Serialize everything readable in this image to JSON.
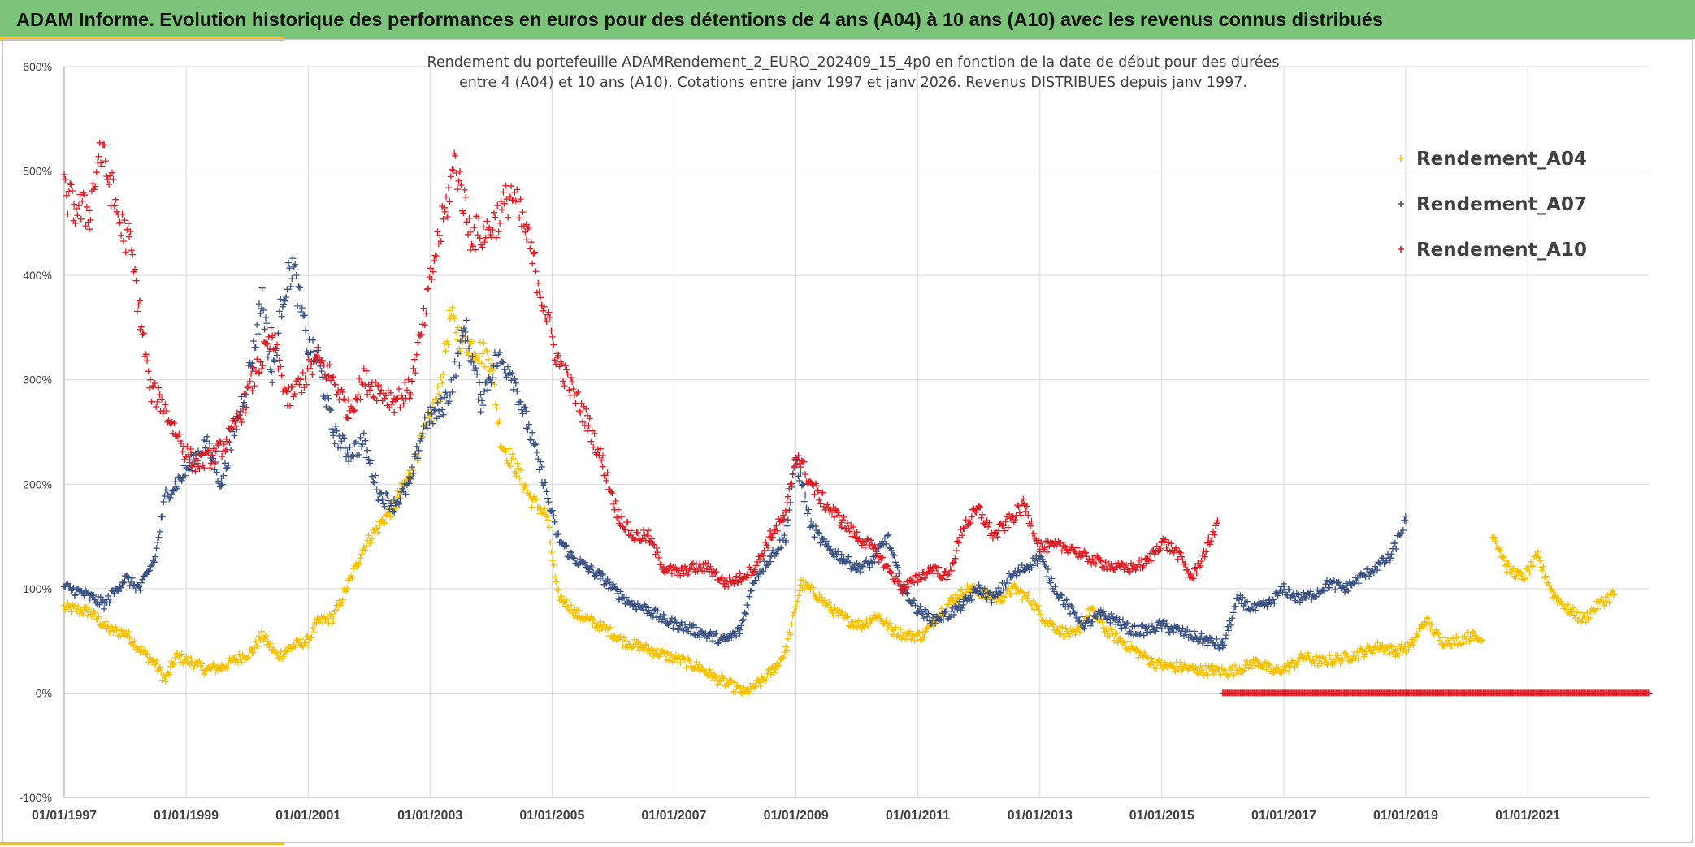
{
  "page": {
    "title": "ADAM Informe. Evolution historique des performances en euros pour des détentions de 4 ans (A04) à 10 ans (A10) avec les revenus connus distribués"
  },
  "chart_data": {
    "type": "scatter",
    "title_lines": [
      "Rendement du portefeuille ADAMRendement_2_EURO_202409_15_4p0  en fonction de la date de début pour des durées",
      "entre 4 (A04) et 10 ans (A10). Cotations entre janv 1997 et janv 2026. Revenus DISTRIBUES depuis janv 1997."
    ],
    "x_axis": {
      "type": "date",
      "min": "1997-01-01",
      "max": "2022-12-31",
      "ticks": [
        "01/01/1997",
        "01/01/1999",
        "01/01/2001",
        "01/01/2003",
        "01/01/2005",
        "01/01/2007",
        "01/01/2009",
        "01/01/2011",
        "01/01/2013",
        "01/01/2015",
        "01/01/2017",
        "01/01/2019",
        "01/01/2021"
      ]
    },
    "y_axis": {
      "min": -100,
      "max": 600,
      "step": 100,
      "unit": "%",
      "ticks": [
        "-100%",
        "0%",
        "100%",
        "200%",
        "300%",
        "400%",
        "500%",
        "600%"
      ]
    },
    "grid": true,
    "marker": "+",
    "legend": {
      "position": "right",
      "entries": [
        "Rendement_A04",
        "Rendement_A07",
        "Rendement_A10"
      ]
    },
    "series": [
      {
        "name": "Rendement_A04",
        "color": "#f5c000",
        "segments": [
          {
            "x": [
              "1997-01-01",
              "1997-06-01",
              "1997-10-01",
              "1998-01-01",
              "1998-04-01",
              "1998-07-01",
              "1998-09-01",
              "1998-11-01",
              "1999-02-01",
              "1999-05-01",
              "1999-08-01",
              "1999-11-01",
              "2000-02-01",
              "2000-04-01",
              "2000-07-01",
              "2000-10-01",
              "2001-01-01",
              "2001-03-01",
              "2001-06-01",
              "2001-09-01",
              "2001-12-01",
              "2002-03-01",
              "2002-06-01",
              "2002-09-01",
              "2002-12-01",
              "2003-03-01",
              "2003-05-01",
              "2003-07-01",
              "2003-10-01",
              "2004-01-01",
              "2004-03-01",
              "2004-06-01",
              "2004-09-01",
              "2004-12-01",
              "2005-02-01",
              "2005-06-01",
              "2005-09-01",
              "2005-12-01",
              "2006-03-01",
              "2006-06-01",
              "2006-09-01",
              "2006-12-01",
              "2007-03-01",
              "2007-06-01",
              "2007-09-01",
              "2007-12-01",
              "2008-03-01",
              "2008-06-01",
              "2008-09-01",
              "2008-11-01",
              "2009-02-01",
              "2009-05-01",
              "2009-08-01",
              "2009-11-01",
              "2010-02-01",
              "2010-05-01",
              "2010-08-01",
              "2010-11-01",
              "2011-02-01",
              "2011-05-01",
              "2011-08-01",
              "2011-11-01",
              "2012-02-01",
              "2012-05-01",
              "2012-08-01",
              "2012-11-01",
              "2013-02-01",
              "2013-05-01",
              "2013-08-01",
              "2013-11-01",
              "2014-02-01",
              "2014-05-01",
              "2014-08-01",
              "2014-11-01",
              "2015-02-01",
              "2015-05-01",
              "2015-08-01",
              "2015-11-01",
              "2016-02-01",
              "2016-05-01",
              "2016-08-01",
              "2016-11-01",
              "2017-02-01",
              "2017-05-01",
              "2017-08-01",
              "2017-11-01",
              "2018-02-01",
              "2018-05-01",
              "2018-08-01",
              "2018-11-01",
              "2019-02-01",
              "2019-05-01",
              "2019-08-01",
              "2019-11-01",
              "2020-02-01",
              "2020-04-01"
            ],
            "y": [
              82,
              78,
              60,
              58,
              42,
              28,
              12,
              35,
              30,
              22,
              25,
              32,
              40,
              55,
              35,
              45,
              50,
              68,
              72,
              105,
              140,
              160,
              180,
              210,
              250,
              290,
              360,
              340,
              330,
              320,
              240,
              215,
              185,
              170,
              95,
              75,
              68,
              60,
              50,
              45,
              40,
              35,
              30,
              25,
              15,
              8,
              0,
              10,
              25,
              40,
              105,
              95,
              80,
              70,
              65,
              75,
              60,
              55,
              55,
              75,
              90,
              100,
              95,
              90,
              100,
              90,
              70,
              60,
              55,
              80,
              60,
              50,
              40,
              30,
              25,
              25,
              22,
              22,
              20,
              25,
              30,
              20,
              25,
              35,
              30,
              32,
              35,
              40,
              45,
              40,
              45,
              70,
              50,
              50,
              55,
              50
            ]
          },
          {
            "x": [
              "2020-06-01",
              "2020-09-01",
              "2020-12-01",
              "2021-03-01",
              "2021-06-01",
              "2021-09-01",
              "2021-12-01",
              "2022-03-01",
              "2022-06-01"
            ],
            "y": [
              155,
              120,
              110,
              130,
              95,
              80,
              70,
              85,
              95
            ]
          }
        ]
      },
      {
        "name": "Rendement_A07",
        "color": "#3a5283",
        "segments": [
          {
            "x": [
              "1997-01-01",
              "1997-05-01",
              "1997-09-01",
              "1998-01-01",
              "1998-04-01",
              "1998-07-01",
              "1998-09-01",
              "1998-11-01",
              "1999-02-01",
              "1999-05-01",
              "1999-08-01",
              "1999-11-01",
              "2000-02-01",
              "2000-04-01",
              "2000-06-01",
              "2000-08-01",
              "2000-10-01",
              "2001-01-01",
              "2001-03-01",
              "2001-06-01",
              "2001-09-01",
              "2001-12-01",
              "2002-03-01",
              "2002-06-01",
              "2002-09-01",
              "2002-12-01",
              "2003-03-01",
              "2003-05-01",
              "2003-08-01",
              "2003-11-01",
              "2004-02-01",
              "2004-05-01",
              "2004-08-01",
              "2004-11-01",
              "2005-02-01",
              "2005-05-01",
              "2005-08-01",
              "2005-11-01",
              "2006-02-01",
              "2006-05-01",
              "2006-08-01",
              "2006-11-01",
              "2007-02-01",
              "2007-05-01",
              "2007-08-01",
              "2007-11-01",
              "2008-02-01",
              "2008-05-01",
              "2008-08-01",
              "2008-11-01",
              "2009-01-01",
              "2009-04-01",
              "2009-07-01",
              "2009-10-01",
              "2010-01-01",
              "2010-04-01",
              "2010-07-01",
              "2010-10-01",
              "2011-01-01",
              "2011-04-01",
              "2011-07-01",
              "2011-10-01",
              "2012-01-01",
              "2012-04-01",
              "2012-07-01",
              "2012-10-01",
              "2013-01-01",
              "2013-04-01",
              "2013-07-01",
              "2013-10-01",
              "2014-01-01",
              "2014-04-01",
              "2014-07-01",
              "2014-10-01",
              "2015-01-01",
              "2015-04-01",
              "2015-07-01",
              "2015-10-01",
              "2016-01-01",
              "2016-04-01",
              "2016-07-01",
              "2016-10-01",
              "2017-01-01",
              "2017-04-01",
              "2017-07-01",
              "2017-10-01",
              "2018-01-01",
              "2018-04-01",
              "2018-07-01",
              "2018-10-01",
              "2019-01-01"
            ],
            "y": [
              102,
              95,
              85,
              110,
              100,
              130,
              190,
              200,
              220,
              240,
              200,
              260,
              320,
              380,
              300,
              380,
              410,
              330,
              320,
              250,
              230,
              240,
              190,
              180,
              200,
              260,
              270,
              290,
              350,
              280,
              320,
              310,
              260,
              210,
              150,
              130,
              120,
              110,
              95,
              85,
              80,
              70,
              65,
              60,
              55,
              50,
              60,
              110,
              130,
              150,
              225,
              160,
              140,
              130,
              120,
              125,
              150,
              100,
              80,
              70,
              75,
              85,
              100,
              90,
              110,
              120,
              130,
              100,
              80,
              65,
              75,
              70,
              60,
              60,
              65,
              60,
              55,
              50,
              45,
              90,
              80,
              85,
              100,
              90,
              95,
              105,
              100,
              110,
              120,
              130,
              165
            ]
          }
        ]
      },
      {
        "name": "Rendement_A10",
        "color": "#e01a22",
        "segments": [
          {
            "x": [
              "1997-01-01",
              "1997-03-01",
              "1997-06-01",
              "1997-08-01",
              "1997-10-01",
              "1997-12-01",
              "1998-02-01",
              "1998-04-01",
              "1998-06-01",
              "1998-08-01",
              "1998-10-01",
              "1999-01-01",
              "1999-03-01",
              "1999-06-01",
              "1999-09-01",
              "1999-12-01",
              "2000-03-01",
              "2000-06-01",
              "2000-09-01",
              "2000-12-01",
              "2001-03-01",
              "2001-06-01",
              "2001-09-01",
              "2001-12-01",
              "2002-03-01",
              "2002-06-01",
              "2002-09-01",
              "2002-12-01",
              "2003-02-01",
              "2003-04-01",
              "2003-06-01",
              "2003-09-01",
              "2003-12-01",
              "2004-03-01",
              "2004-05-01",
              "2004-08-01",
              "2004-11-01",
              "2005-02-01",
              "2005-05-01",
              "2005-08-01",
              "2005-11-01",
              "2006-02-01",
              "2006-05-01",
              "2006-08-01",
              "2006-11-01",
              "2007-02-01",
              "2007-05-01",
              "2007-08-01",
              "2007-11-01",
              "2008-02-01",
              "2008-05-01",
              "2008-08-01",
              "2008-11-01",
              "2009-01-01",
              "2009-04-01",
              "2009-07-01",
              "2009-10-01",
              "2010-01-01",
              "2010-04-01",
              "2010-07-01",
              "2010-10-01",
              "2011-01-01",
              "2011-04-01",
              "2011-07-01",
              "2011-10-01",
              "2012-01-01",
              "2012-04-01",
              "2012-07-01",
              "2012-10-01",
              "2013-01-01",
              "2013-04-01",
              "2013-07-01",
              "2013-10-01",
              "2014-01-01",
              "2014-04-01",
              "2014-07-01",
              "2014-10-01",
              "2015-01-01",
              "2015-04-01",
              "2015-07-01",
              "2015-10-01",
              "2015-12-01"
            ],
            "y": [
              480,
              465,
              460,
              520,
              490,
              450,
              430,
              360,
              290,
              280,
              260,
              230,
              220,
              225,
              240,
              270,
              310,
              340,
              280,
              300,
              320,
              300,
              270,
              300,
              290,
              280,
              290,
              360,
              420,
              460,
              510,
              440,
              440,
              460,
              480,
              440,
              380,
              320,
              290,
              260,
              220,
              170,
              150,
              150,
              120,
              115,
              120,
              120,
              105,
              110,
              120,
              150,
              170,
              230,
              200,
              180,
              165,
              150,
              140,
              120,
              100,
              110,
              120,
              110,
              160,
              175,
              150,
              165,
              180,
              140,
              140,
              140,
              130,
              125,
              120,
              120,
              125,
              145,
              135,
              110,
              140,
              165
            ]
          },
          {
            "x_range": [
              "2016-01-01",
              "2022-12-31"
            ],
            "y": 0,
            "note": "dense row"
          }
        ]
      }
    ]
  }
}
